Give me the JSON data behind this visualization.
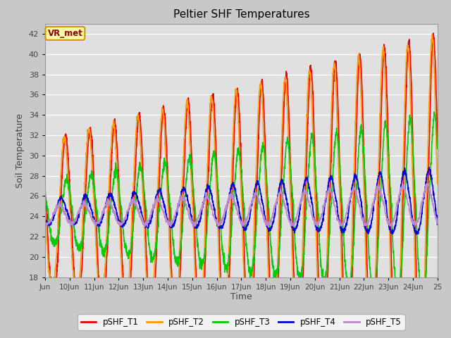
{
  "title": "Peltier SHF Temperatures",
  "xlabel": "Time",
  "ylabel": "Soil Temperature",
  "ylim": [
    18,
    43
  ],
  "xlim_days": [
    9,
    25
  ],
  "annotation": "VR_met",
  "fig_facecolor": "#c8c8c8",
  "plot_bg_color": "#e0e0e0",
  "series_colors": [
    "#ee0000",
    "#ff9900",
    "#00cc00",
    "#0000dd",
    "#bb88cc"
  ],
  "series_labels": [
    "pSHF_T1",
    "pSHF_T2",
    "pSHF_T3",
    "pSHF_T4",
    "pSHF_T5"
  ],
  "yticks": [
    18,
    20,
    22,
    24,
    26,
    28,
    30,
    32,
    34,
    36,
    38,
    40,
    42
  ],
  "xtick_labels": [
    "Jun",
    "10Jun",
    "11Jun",
    "12Jun",
    "13Jun",
    "14Jun",
    "15Jun",
    "16Jun",
    "17Jun",
    "18Jun",
    "19Jun",
    "20Jun",
    "21Jun",
    "22Jun",
    "23Jun",
    "24Jun",
    "25"
  ],
  "xtick_positions": [
    9,
    10,
    11,
    12,
    13,
    14,
    15,
    16,
    17,
    18,
    19,
    20,
    21,
    22,
    23,
    24,
    25
  ],
  "points_per_day": 144,
  "linewidth": 1.2
}
